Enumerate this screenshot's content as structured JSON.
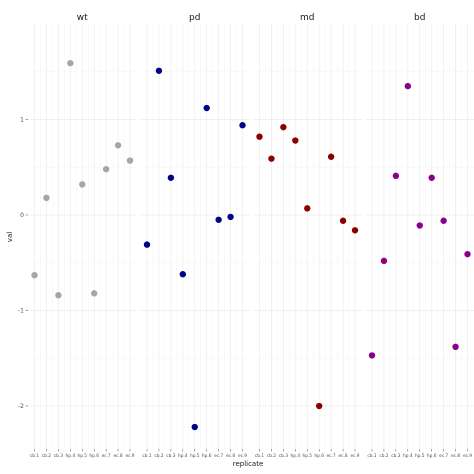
{
  "chart_data": {
    "type": "scatter",
    "xlabel": "replicate",
    "ylabel": "val",
    "ylim": [
      -2.45,
      2.0
    ],
    "yticks": [
      -2,
      -1,
      0,
      1
    ],
    "categories": [
      "cb.1",
      "cb.2",
      "cb.3",
      "hp.4",
      "hp.5",
      "hp.6",
      "ec.7",
      "ec.8",
      "ec.9"
    ],
    "grid": true,
    "legend": "none",
    "panels": [
      {
        "name": "wt",
        "color": "#a6a6a6",
        "values": [
          -0.63,
          0.18,
          -0.84,
          1.59,
          0.32,
          -0.82,
          0.48,
          0.73,
          0.57
        ]
      },
      {
        "name": "pd",
        "color": "#00008b",
        "values": [
          -0.31,
          1.51,
          0.39,
          -0.62,
          -2.22,
          1.12,
          -0.05,
          -0.02,
          0.94
        ]
      },
      {
        "name": "md",
        "color": "#8b0000",
        "values": [
          0.82,
          0.59,
          0.92,
          0.78,
          0.07,
          -2.0,
          0.61,
          -0.06,
          -0.16
        ]
      },
      {
        "name": "bd",
        "color": "#8b008b",
        "values": [
          -1.47,
          -0.48,
          0.41,
          1.35,
          -0.11,
          0.39,
          -0.06,
          -1.38,
          -0.41
        ]
      }
    ]
  }
}
